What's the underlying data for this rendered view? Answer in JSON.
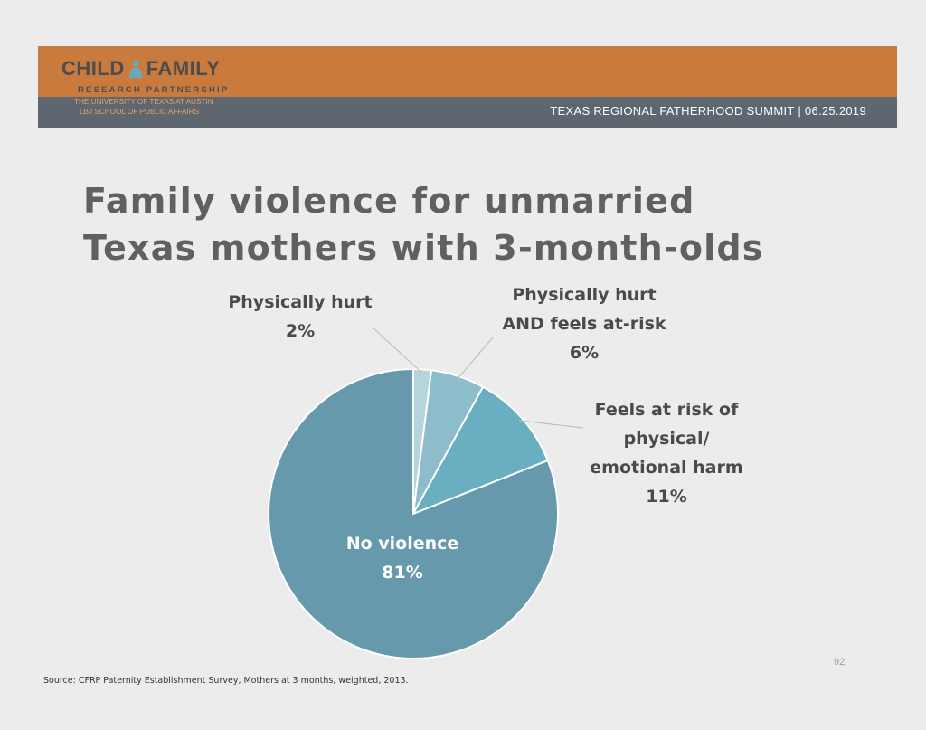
{
  "header": {
    "logo_title_left": "CHILD",
    "logo_title_right": "FAMILY",
    "logo_subtitle": "RESEARCH PARTNERSHIP",
    "university_line1": "THE UNIVERSITY OF TEXAS AT AUSTIN",
    "university_line2": "LBJ SCHOOL OF PUBLIC AFFAIRS",
    "event": "TEXAS REGIONAL FATHERHOOD SUMMIT | 06.25.2019",
    "colors": {
      "banner_top": "#c97a3d",
      "banner_bottom": "#5e6770",
      "logo_icon": "#6aa9bd"
    }
  },
  "title_line1": "Family violence for unmarried",
  "title_line2": "Texas mothers with 3-month-olds",
  "chart_data": {
    "type": "pie",
    "slices": [
      {
        "label_lines": [
          "Physically hurt"
        ],
        "value_label": "2%",
        "value": 2,
        "color": "#b5d4dd"
      },
      {
        "label_lines": [
          "Physically hurt",
          "AND feels at-risk"
        ],
        "value_label": "6%",
        "value": 6,
        "color": "#8dbccb"
      },
      {
        "label_lines": [
          "Feels at risk of",
          "physical/",
          "emotional harm"
        ],
        "value_label": "11%",
        "value": 11,
        "color": "#6aaec1"
      },
      {
        "label_lines": [
          "No violence"
        ],
        "value_label": "81%",
        "value": 81,
        "color": "#6699ac"
      }
    ],
    "start_angle_deg": 0,
    "direction": "clockwise"
  },
  "source": "Source: CFRP Paternity Establishment Survey, Mothers at 3 months, weighted, 2013.",
  "page_number": "92"
}
